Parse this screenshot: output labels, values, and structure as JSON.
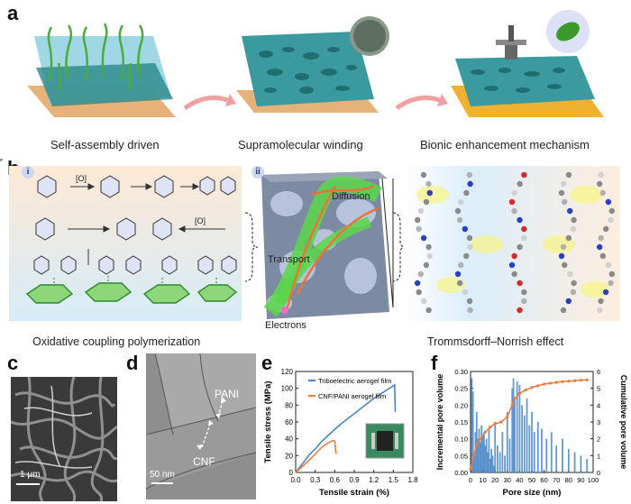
{
  "panel_a": {
    "letter": "a",
    "stage_labels": [
      "Self-assembly driven",
      "Supramolecular winding",
      "Bionic enhancement mechanism"
    ],
    "colors": {
      "gradient_start": "#e45a5a",
      "gradient_mid": "#f3e8ef",
      "gradient_end": "#3da3e0"
    }
  },
  "panel_b": {
    "letter": "b",
    "sub_i": "i",
    "sub_ii": "ii",
    "oxidant_label": "[O]",
    "diffusion_label": "Diffusion",
    "transport_label": "Transport",
    "electrons_label": "Electrons",
    "caption_left": "Oxidative coupling polymerization",
    "caption_right": "Trommsdorff–Norrish effect"
  },
  "panel_c": {
    "letter": "c",
    "scale_bar": "1 μm"
  },
  "panel_d": {
    "letter": "d",
    "label_pani": "PANI",
    "label_cnf": "CNF",
    "scale_bar": "50 nm"
  },
  "panel_e": {
    "letter": "e",
    "legend": [
      "Triboelectric aerogel film",
      "CNF/PANI aerogel film"
    ]
  },
  "panel_f": {
    "letter": "f"
  },
  "chart_data": [
    {
      "type": "line",
      "xlabel": "Tensile strain (%)",
      "ylabel": "Tensile stress (MPa)",
      "xlim": [
        0,
        1.8
      ],
      "ylim": [
        0,
        120
      ],
      "xticks": [
        "0.0",
        "0.3",
        "0.6",
        "0.9",
        "1.2",
        "1.5",
        "1.8"
      ],
      "yticks": [
        "0",
        "20",
        "40",
        "60",
        "80",
        "100",
        "120"
      ],
      "series": [
        {
          "name": "Triboelectric aerogel film",
          "color": "#4a86c8",
          "x": [
            0,
            0.1,
            0.2,
            0.3,
            0.4,
            0.5,
            0.6,
            0.7,
            0.8,
            0.9,
            1.0,
            1.1,
            1.2,
            1.3,
            1.4,
            1.5,
            1.52,
            1.53
          ],
          "y": [
            0,
            10,
            20,
            28,
            37,
            44,
            51,
            58,
            64,
            70,
            76,
            82,
            88,
            93,
            98,
            103,
            104,
            72
          ]
        },
        {
          "name": "CNF/PANI aerogel film",
          "color": "#f07a3a",
          "x": [
            0,
            0.1,
            0.2,
            0.3,
            0.4,
            0.5,
            0.57,
            0.6,
            0.62
          ],
          "y": [
            0,
            7,
            14,
            22,
            30,
            35,
            38,
            37,
            22
          ]
        }
      ]
    },
    {
      "type": "bar",
      "xlabel": "Pore size (nm)",
      "ylabel": "Incremental pore volume",
      "y2label": "Cumulative pore volume",
      "xlim": [
        0,
        100
      ],
      "ylim": [
        0,
        0.3
      ],
      "y2lim": [
        0,
        6
      ],
      "xticks": [
        "0",
        "10",
        "20",
        "30",
        "40",
        "50",
        "60",
        "70",
        "80",
        "90",
        "100"
      ],
      "yticks": [
        "0.00",
        "0.05",
        "0.10",
        "0.15",
        "0.20",
        "0.25",
        "0.30"
      ],
      "y2ticks": [
        "0",
        "1",
        "2",
        "3",
        "4",
        "5",
        "6"
      ],
      "bars": {
        "color": "#4a86c8",
        "x": [
          1,
          2,
          3,
          4,
          5,
          6,
          7,
          8,
          9,
          10,
          11,
          12,
          13,
          14,
          15,
          16,
          17,
          18,
          19,
          20,
          22,
          24,
          26,
          28,
          30,
          32,
          34,
          35,
          36,
          38,
          40,
          42,
          44,
          46,
          48,
          50,
          52,
          55,
          58,
          62,
          66,
          70,
          75,
          80,
          85,
          90,
          95
        ],
        "y": [
          0.28,
          0.24,
          0.05,
          0.12,
          0.18,
          0.1,
          0.13,
          0.09,
          0.14,
          0.11,
          0.12,
          0.08,
          0.1,
          0.06,
          0.13,
          0.04,
          0.07,
          0.05,
          0.02,
          0.15,
          0.08,
          0.06,
          0.12,
          0.05,
          0.18,
          0.1,
          0.25,
          0.28,
          0.22,
          0.27,
          0.26,
          0.2,
          0.17,
          0.22,
          0.14,
          0.18,
          0.12,
          0.15,
          0.13,
          0.1,
          0.12,
          0.08,
          0.1,
          0.07,
          0.06,
          0.05,
          0.04
        ]
      },
      "cumulative": {
        "color": "#f07a3a",
        "x": [
          0,
          2,
          5,
          8,
          12,
          16,
          20,
          25,
          30,
          34,
          36,
          40,
          45,
          50,
          55,
          60,
          65,
          70,
          75,
          80,
          85,
          90,
          95
        ],
        "y": [
          0.2,
          0.9,
          1.6,
          2.0,
          2.4,
          2.7,
          2.9,
          3.0,
          3.3,
          4.0,
          4.4,
          4.7,
          4.9,
          5.05,
          5.15,
          5.25,
          5.3,
          5.35,
          5.4,
          5.42,
          5.45,
          5.48,
          5.5
        ]
      }
    }
  ]
}
